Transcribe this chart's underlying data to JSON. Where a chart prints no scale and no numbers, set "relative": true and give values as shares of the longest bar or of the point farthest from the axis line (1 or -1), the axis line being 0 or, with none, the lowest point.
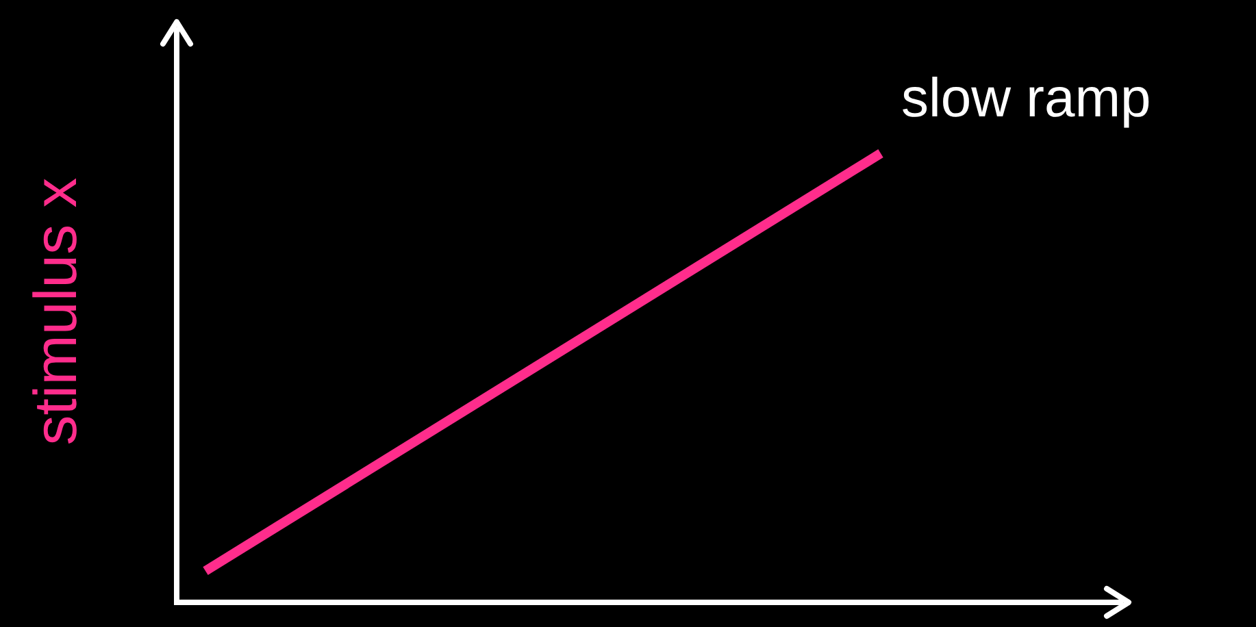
{
  "chart_data": {
    "type": "line",
    "ylabel": "stimulus x",
    "relative": true,
    "categories": [
      null,
      null
    ],
    "series": [
      {
        "name": "slow ramp",
        "color": "#ff2d8c",
        "values": [
          0.07,
          1
        ]
      }
    ],
    "grid": false,
    "legend": false,
    "marker": "none",
    "line_style": "solid"
  }
}
